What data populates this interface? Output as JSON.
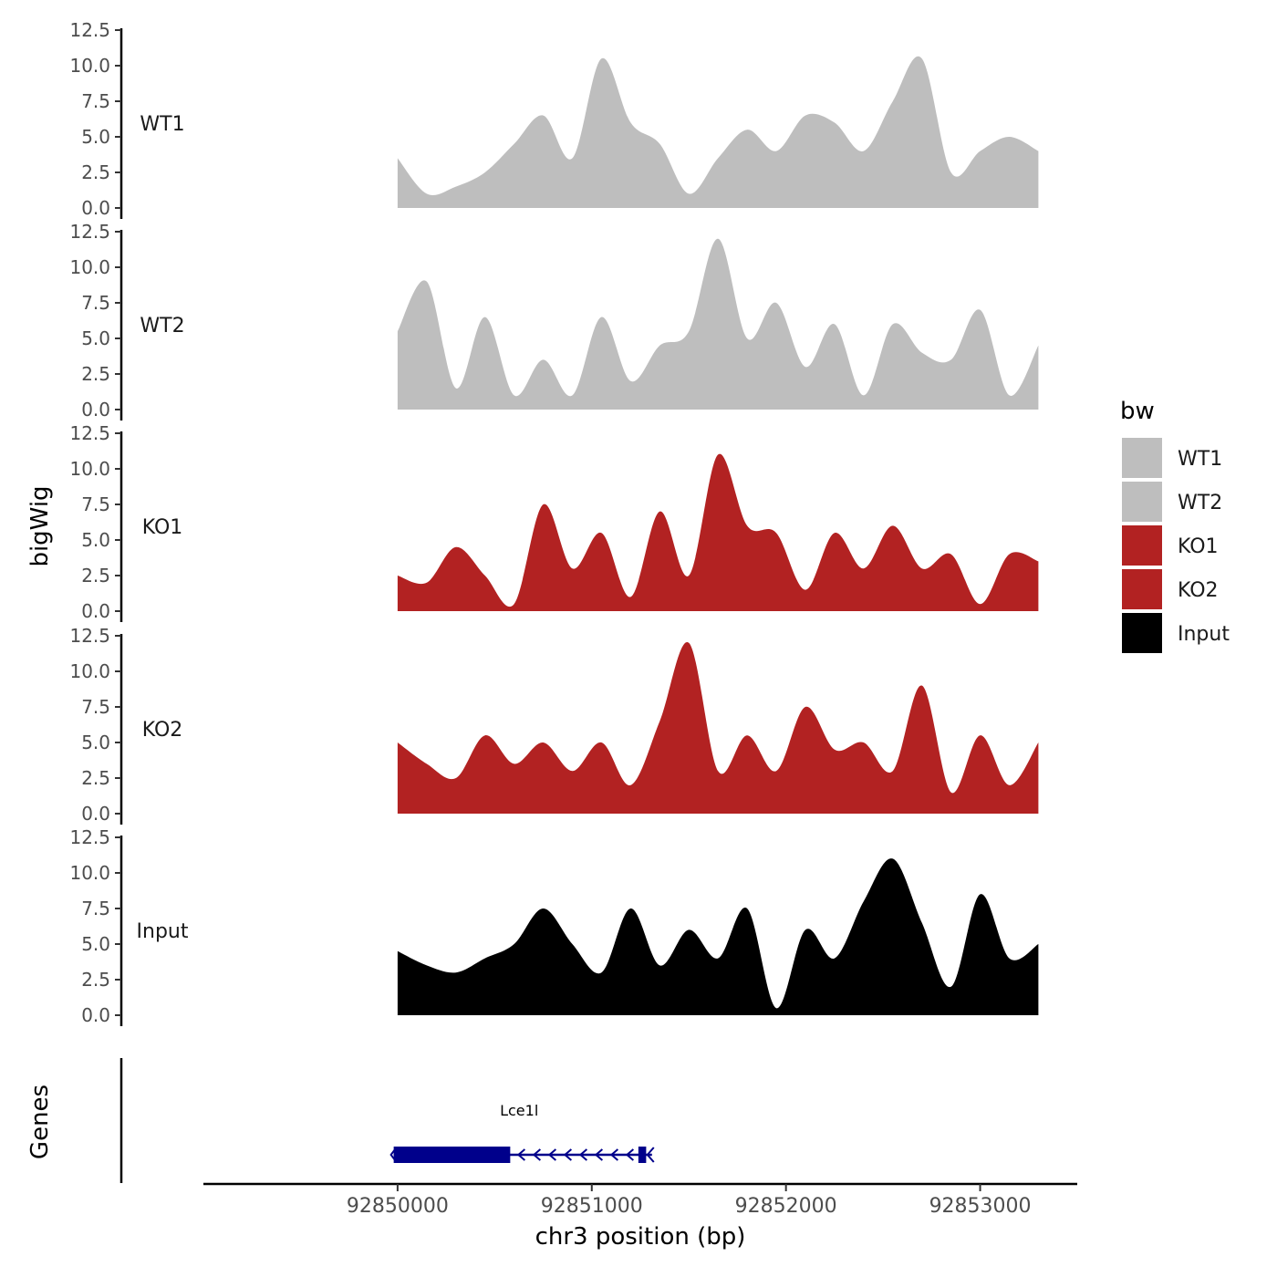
{
  "chart_data": {
    "type": "area",
    "title": "",
    "xlabel": "chr3 position (bp)",
    "ylabel": "bigWig",
    "gene_track_label": "Genes",
    "xlim": [
      92849000,
      92853500
    ],
    "x_ticks": [
      92850000,
      92851000,
      92852000,
      92853000
    ],
    "x_tick_labels": [
      "92850000",
      "92851000",
      "92852000",
      "92853000"
    ],
    "ylim": [
      0,
      12.5
    ],
    "y_ticks": [
      0,
      2.5,
      5,
      7.5,
      10,
      12.5
    ],
    "y_tick_labels": [
      "0.0",
      "2.5",
      "5.0",
      "7.5",
      "10.0",
      "12.5"
    ],
    "x_positions": [
      92850000,
      92850150,
      92850300,
      92850450,
      92850600,
      92850750,
      92850900,
      92851050,
      92851200,
      92851350,
      92851500,
      92851650,
      92851800,
      92851950,
      92852100,
      92852250,
      92852400,
      92852550,
      92852700,
      92852850,
      92853000,
      92853150,
      92853300
    ],
    "series": [
      {
        "name": "WT1",
        "color": "#bebebe",
        "values": [
          3.5,
          1.0,
          1.5,
          2.5,
          4.5,
          6.5,
          3.5,
          10.5,
          6.0,
          4.5,
          1.0,
          3.5,
          5.5,
          4.0,
          6.5,
          6.0,
          4.0,
          7.5,
          10.5,
          2.5,
          4.0,
          5.0,
          4.0
        ]
      },
      {
        "name": "WT2",
        "color": "#bebebe",
        "values": [
          5.5,
          9.0,
          1.5,
          6.5,
          1.0,
          3.5,
          1.0,
          6.5,
          2.0,
          4.5,
          5.5,
          12.0,
          5.0,
          7.5,
          3.0,
          6.0,
          1.0,
          6.0,
          4.0,
          3.5,
          7.0,
          1.0,
          4.5
        ]
      },
      {
        "name": "KO1",
        "color": "#b22222",
        "values": [
          2.5,
          2.0,
          4.5,
          2.5,
          0.5,
          7.5,
          3.0,
          5.5,
          1.0,
          7.0,
          2.5,
          11.0,
          6.0,
          5.5,
          1.5,
          5.5,
          3.0,
          6.0,
          3.0,
          4.0,
          0.5,
          4.0,
          3.5
        ]
      },
      {
        "name": "KO2",
        "color": "#b22222",
        "values": [
          5.0,
          3.5,
          2.5,
          5.5,
          3.5,
          5.0,
          3.0,
          5.0,
          2.0,
          6.5,
          12.0,
          3.0,
          5.5,
          3.0,
          7.5,
          4.5,
          5.0,
          3.0,
          9.0,
          1.5,
          5.5,
          2.0,
          5.0
        ]
      },
      {
        "name": "Input",
        "color": "#000000",
        "values": [
          4.5,
          3.5,
          3.0,
          4.0,
          5.0,
          7.5,
          5.0,
          3.0,
          7.5,
          3.5,
          6.0,
          4.0,
          7.5,
          0.5,
          6.0,
          4.0,
          8.0,
          11.0,
          6.5,
          2.0,
          8.5,
          4.0,
          5.0
        ]
      }
    ],
    "legend": {
      "title": "bw",
      "position": "right",
      "entries": [
        {
          "label": "WT1",
          "color": "#bebebe"
        },
        {
          "label": "WT2",
          "color": "#bebebe"
        },
        {
          "label": "KO1",
          "color": "#b22222"
        },
        {
          "label": "KO2",
          "color": "#b22222"
        },
        {
          "label": "Input",
          "color": "#000000"
        }
      ]
    },
    "genes": [
      {
        "name": "Lce1l",
        "strand": "-",
        "color": "#00008b",
        "start": 92849980,
        "end": 92851310,
        "exons": [
          [
            92849980,
            92850580
          ],
          [
            92851240,
            92851280
          ]
        ]
      }
    ]
  }
}
